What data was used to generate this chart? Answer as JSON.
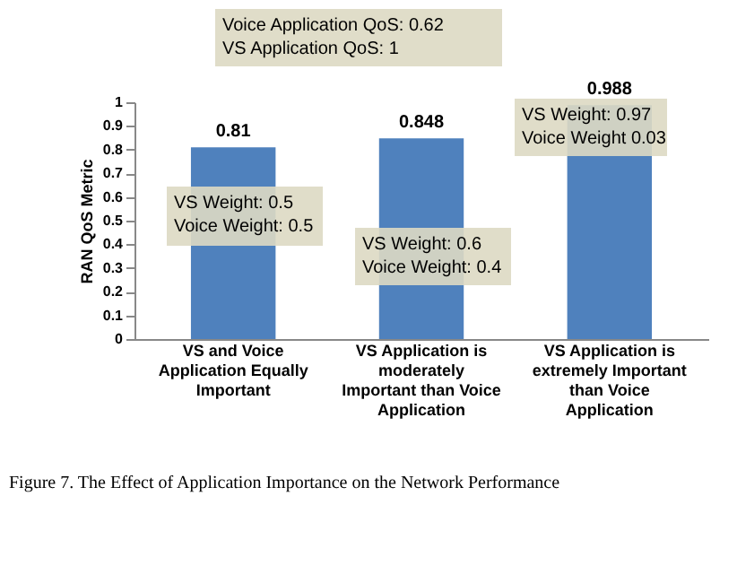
{
  "chart_data": {
    "type": "bar",
    "categories": [
      "VS and Voice\nApplication Equally\nImportant",
      "VS Application is\nmoderately\nImportant than Voice\nApplication",
      "VS Application is\nextremely Important\nthan Voice\nApplication"
    ],
    "values": [
      0.81,
      0.848,
      0.988
    ],
    "color": "#4f81bd",
    "ylabel": "RAN QoS Metric",
    "ylim": [
      0,
      1
    ],
    "yticks": [
      0,
      0.1,
      0.2,
      0.3,
      0.4,
      0.5,
      0.6,
      0.7,
      0.8,
      0.9,
      1
    ],
    "grid": false,
    "data_labels": true,
    "annotations": [
      "Voice Application QoS: 0.62\nVS Application QoS: 1",
      "VS Weight: 0.5\nVoice Weight: 0.5",
      "VS Weight: 0.6\nVoice Weight: 0.4",
      "VS Weight: 0.97\nVoice Weight 0.03",
      "Figure 7. The Effect of  Application Importance on the Network Performance"
    ]
  }
}
